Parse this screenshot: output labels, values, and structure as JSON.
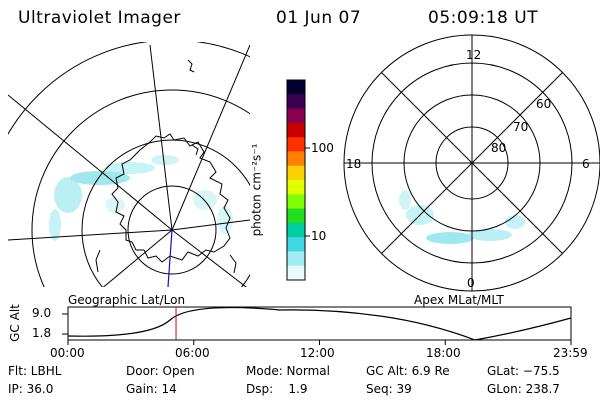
{
  "header": {
    "instrument": "Ultraviolet Imager",
    "date": "01 Jun 07",
    "time": "05:09:18 UT"
  },
  "colorbar": {
    "unit_label": "photon cm⁻²s⁻¹",
    "ticks": [
      "100",
      "10"
    ],
    "colors": [
      "#000030",
      "#3a0050",
      "#8a0050",
      "#c80000",
      "#ff3000",
      "#ff8000",
      "#ffd000",
      "#e0ff00",
      "#80ff00",
      "#20e020",
      "#00d0a0",
      "#40d8e0",
      "#a0ecf0",
      "#e8fbff"
    ]
  },
  "left_map": {
    "label": "Geographic Lat/Lon"
  },
  "right_polar": {
    "label": "Apex MLat/MLT",
    "mlt_labels": {
      "top": "12",
      "left": "18",
      "right": "6",
      "bottom": "0"
    },
    "lat_labels": [
      "60",
      "70",
      "80"
    ]
  },
  "altitude_plot": {
    "ylabel": "GC Alt",
    "ticks": [
      "9.0",
      "1.8"
    ],
    "time_ticks": [
      "00:00",
      "06:00",
      "12:00",
      "18:00",
      "23:59"
    ],
    "current_time_hours": 5.155
  },
  "footer": {
    "row1": {
      "filter": "Flt: LBHL",
      "door": "Door: Open",
      "mode": "Mode: Normal",
      "gc_alt": "GC Alt: 6.9 Re",
      "glat": "GLat: −75.5"
    },
    "row2": {
      "ip": "IP: 36.0",
      "gain": "Gain: 14",
      "dsp": "Dsp:    1.9",
      "seq": "Seq: 39",
      "glon": "GLon: 238.7"
    }
  }
}
